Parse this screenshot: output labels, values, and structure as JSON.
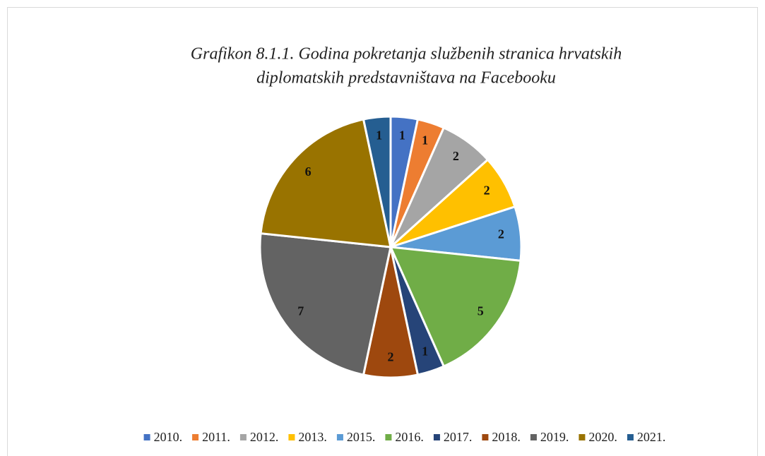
{
  "chart_data": {
    "type": "pie",
    "title": [
      "Grafikon 8.1.1. Godina pokretanja službenih stranica hrvatskih",
      "diplomatskih predstavništava na Facebooku"
    ],
    "categories": [
      "2010.",
      "2011.",
      "2012.",
      "2013.",
      "2015.",
      "2016.",
      "2017.",
      "2018.",
      "2019.",
      "2020.",
      "2021."
    ],
    "values": [
      1,
      1,
      2,
      2,
      2,
      5,
      1,
      2,
      7,
      6,
      1
    ],
    "colors": [
      "#4472c4",
      "#ed7d31",
      "#a5a5a5",
      "#ffc000",
      "#5b9bd5",
      "#70ad47",
      "#264478",
      "#9e480e",
      "#636363",
      "#997300",
      "#255e91"
    ],
    "legend": "bottom"
  }
}
